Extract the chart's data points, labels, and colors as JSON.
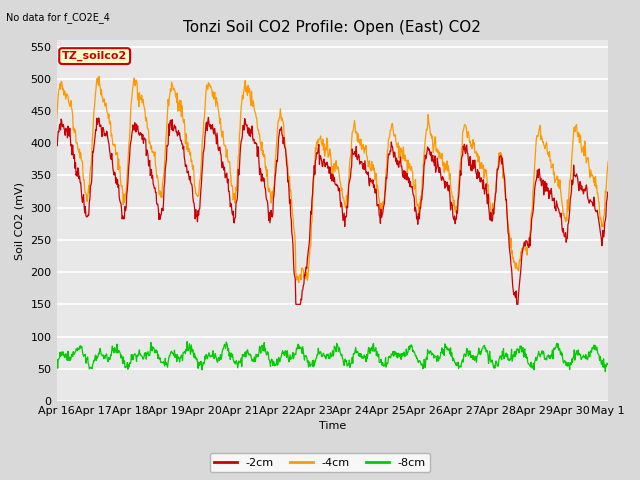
{
  "title": "Tonzi Soil CO2 Profile: Open (East) CO2",
  "subtitle": "No data for f_CO2E_4",
  "ylabel": "Soil CO2 (mV)",
  "xlabel": "Time",
  "ylim": [
    0,
    560
  ],
  "yticks": [
    0,
    50,
    100,
    150,
    200,
    250,
    300,
    350,
    400,
    450,
    500,
    550
  ],
  "colors": {
    "2cm": "#cc0000",
    "4cm": "#ff9900",
    "8cm": "#00cc00"
  },
  "legend_labels": [
    "-2cm",
    "-4cm",
    "-8cm"
  ],
  "legend_colors": [
    "#cc0000",
    "#ff9900",
    "#00cc00"
  ],
  "box_label": "TZ_soilco2",
  "box_facecolor": "#ffffcc",
  "box_edgecolor": "#cc0000",
  "background_color": "#d9d9d9",
  "plot_bg_color": "#e8e8e8",
  "grid_color": "#ffffff",
  "title_fontsize": 11,
  "axis_fontsize": 8,
  "tick_fontsize": 8,
  "xtick_labels": [
    "Apr 16",
    "Apr 17",
    "Apr 18",
    "Apr 19",
    "Apr 20",
    "Apr 21",
    "Apr 22",
    "Apr 23",
    "Apr 24",
    "Apr 25",
    "Apr 26",
    "Apr 27",
    "Apr 28",
    "Apr 29",
    "Apr 30",
    "May 1"
  ],
  "num_xticks": 16
}
